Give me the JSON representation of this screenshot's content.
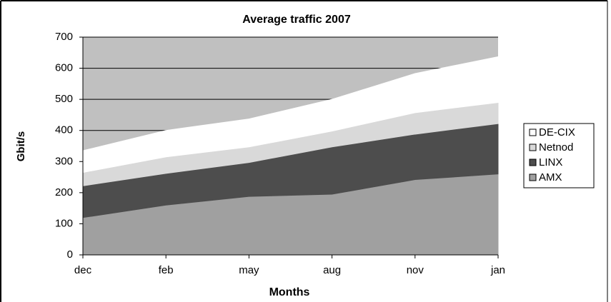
{
  "chart_data": {
    "type": "area",
    "stacked": true,
    "title": "Average traffic 2007",
    "x_label": "Months",
    "y_label": "Gbit/s",
    "categories": [
      "dec",
      "feb",
      "may",
      "aug",
      "nov",
      "jan"
    ],
    "series": [
      {
        "name": "AMX",
        "color": "#a0a0a0",
        "values": [
          120,
          160,
          188,
          195,
          242,
          260
        ]
      },
      {
        "name": "LINX",
        "color": "#4d4d4d",
        "values": [
          102,
          102,
          109,
          152,
          146,
          162
        ]
      },
      {
        "name": "Netnod",
        "color": "#d9d9d9",
        "values": [
          43,
          53,
          50,
          51,
          69,
          68
        ]
      },
      {
        "name": "DE-CIX",
        "color": "#ffffff",
        "values": [
          70,
          85,
          90,
          102,
          126,
          147
        ]
      }
    ],
    "ylim": [
      0,
      700
    ],
    "yticks": [
      0,
      100,
      200,
      300,
      400,
      500,
      600,
      700
    ],
    "grid": true,
    "legend": "right",
    "plot_background": "#c0c0c0"
  }
}
